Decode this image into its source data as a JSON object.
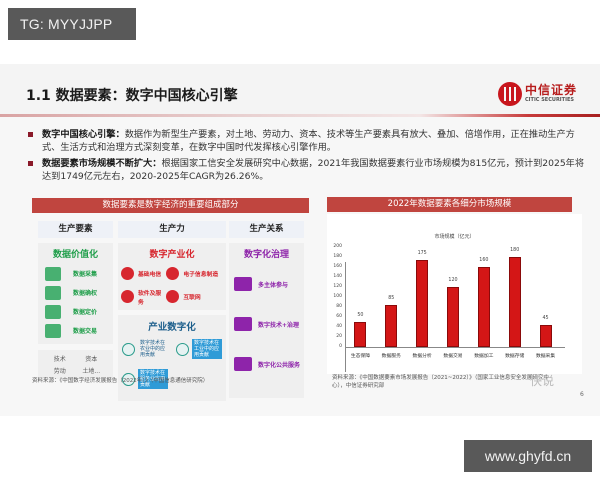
{
  "watermarks": {
    "top_left": "TG: MYYJJPP",
    "bottom_right": "www.ghyfd.cn",
    "chart_overlay": "快说"
  },
  "slide": {
    "title": "1.1 数据要素：数字中国核心引擎",
    "logo": {
      "cn": "中信证券",
      "en": "CITIC SECURITIES",
      "color": "#c8161d"
    },
    "page_number": "6",
    "bullets": [
      {
        "lead": "数字中国核心引擎：",
        "text": "数据作为新型生产要素，对土地、劳动力、资本、技术等生产要素具有放大、叠加、倍增作用，正在推动生产方式、生活方式和治理方式深刻变革，在数字中国时代发挥核心引擎作用。"
      },
      {
        "lead": "数据要素市场规模不断扩大：",
        "text": "根据国家工信安全发展研究中心数据，2021年我国数据要素行业市场规模为815亿元，预计到2025年将达到1749亿元左右，2020-2025年CAGR为26.26%。"
      }
    ]
  },
  "left_panel": {
    "banner": "数据要素是数字经济的重要组成部分",
    "columns": [
      {
        "header": "生产要素",
        "subtitle": "数据价值化",
        "color": "#1f9e4a",
        "items": [
          "数据采集",
          "数据确权",
          "数据定价",
          "数据交易"
        ],
        "footer": [
          "技术",
          "资本",
          "劳动",
          "土地..."
        ]
      },
      {
        "header": "生产力",
        "subtitle": "数字产业化",
        "color": "#d7262e",
        "items": [
          "基础电信",
          "电子信息制造",
          "软件及服务",
          "互联网"
        ],
        "sub2": {
          "title": "产业数字化",
          "color": "#1d5f8c",
          "nodes": [
            "数字技术在农业中的应用贡献",
            "数字技术在工业中的应用贡献",
            "数字技术在服务业应用贡献"
          ]
        }
      },
      {
        "header": "生产关系",
        "subtitle": "数字化治理",
        "color": "#8e24aa",
        "items": [
          "多主体参与",
          "数字技术+治理",
          "数字化公共服务"
        ]
      }
    ],
    "source": "资料来源：《中国数字经济发展报告（2022年）》（中国信息通信研究院）"
  },
  "right_panel": {
    "banner": "2022年数据要素各细分市场规模",
    "source_line1": "资料来源：《中国数据要素市场发展报告（2021~2022）》（国家工业信息安全发展研究中",
    "source_line2": "心），中信证券研究部"
  },
  "chart_data": {
    "type": "bar",
    "title": "市场规模（亿元）",
    "categories": [
      "生态保障",
      "数据服务",
      "数据分析",
      "数据交易",
      "数据加工",
      "数据存储",
      "数据采集"
    ],
    "values": [
      50,
      85,
      175,
      120,
      160,
      180,
      45
    ],
    "value_labels": [
      "50",
      "85",
      "175",
      "120",
      "160",
      "180",
      "45"
    ],
    "ylim": [
      0,
      200
    ],
    "yticks": [
      "0",
      "20",
      "40",
      "60",
      "80",
      "100",
      "120",
      "140",
      "160",
      "180",
      "200"
    ],
    "xlabel": "",
    "ylabel": "",
    "bar_color": "#d41616",
    "grid": false,
    "legend": null
  }
}
